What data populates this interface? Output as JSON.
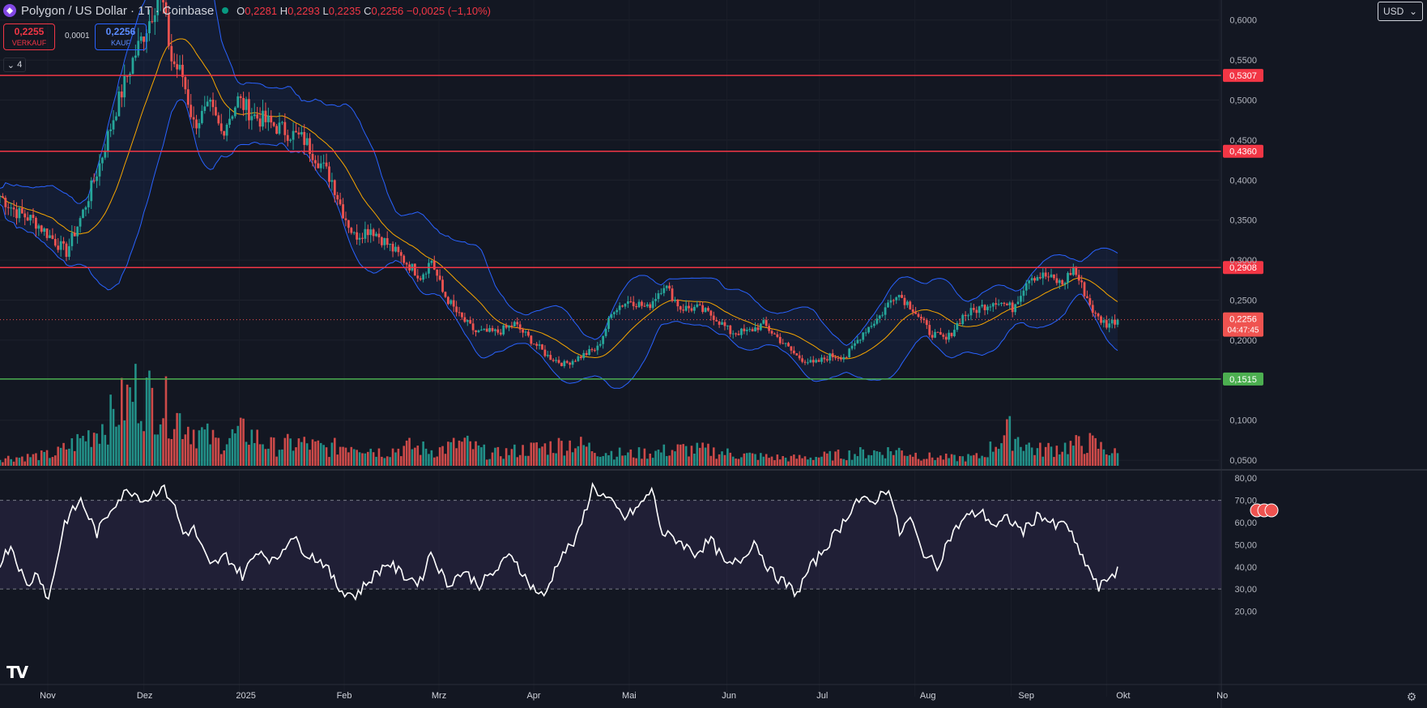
{
  "header": {
    "title": "Polygon / US Dollar · 1T · Coinbase",
    "open_label": "O",
    "open": "0,2281",
    "high_label": "H",
    "high": "0,2293",
    "low_label": "L",
    "low": "0,2235",
    "close_label": "C",
    "close": "0,2256",
    "change": "−0,0025 (−1,10%)"
  },
  "trade": {
    "sell_price": "0,2255",
    "sell_label": "VERKAUF",
    "spread": "0,0001",
    "buy_price": "0,2256",
    "buy_label": "KAUF"
  },
  "indicators_toggle": "4",
  "currency": "USD",
  "icons": [
    "polygon-logo-icon",
    "chevron-down-icon",
    "gear-icon",
    "tradingview-logo-icon",
    "earnings-flag-icon"
  ],
  "colors": {
    "background": "#131722",
    "up": "#26a69a",
    "down": "#ef5350",
    "bollinger_band": "#2962ff",
    "sma": "#f7a600",
    "resistance_line": "#f23645",
    "support_line": "#4caf50",
    "rsi_line": "#ffffff",
    "rsi_zone": "#7e57c2"
  },
  "price_axis": {
    "ticks": [
      "0,6000",
      "0,5500",
      "0,5000",
      "0,4500",
      "0,4000",
      "0,3500",
      "0,3000",
      "0,2500",
      "0,2000",
      "0,1000",
      "0,0500"
    ]
  },
  "levels": [
    {
      "value": 0.5307,
      "label": "0,5307",
      "kind": "resistance"
    },
    {
      "value": 0.436,
      "label": "0,4360",
      "kind": "resistance"
    },
    {
      "value": 0.2908,
      "label": "0,2908",
      "kind": "resistance"
    },
    {
      "value": 0.1515,
      "label": "0,1515",
      "kind": "support"
    }
  ],
  "current_price": {
    "label": "0,2256",
    "countdown": "04:47:45"
  },
  "time_axis": {
    "labels": [
      "Nov",
      "Dez",
      "2025",
      "Feb",
      "Mrz",
      "Apr",
      "Mai",
      "Jun",
      "Jul",
      "Aug",
      "Sep",
      "Okt",
      "No"
    ]
  },
  "rsi_axis": {
    "ticks": [
      "80,00",
      "70,00",
      "60,00",
      "50,00",
      "40,00",
      "30,00",
      "20,00"
    ]
  },
  "chart_data": {
    "type": "candlestick",
    "title": "Polygon / US Dollar · 1T · Coinbase",
    "x": [
      "Nov",
      "Dez",
      "2025",
      "Feb",
      "Mrz",
      "Apr",
      "Mai",
      "Jun",
      "Jul",
      "Aug",
      "Sep",
      "Okt"
    ],
    "close_path": [
      [
        0,
        0.38
      ],
      [
        6,
        0.36
      ],
      [
        12,
        0.35
      ],
      [
        18,
        0.33
      ],
      [
        24,
        0.31
      ],
      [
        30,
        0.36
      ],
      [
        36,
        0.42
      ],
      [
        42,
        0.49
      ],
      [
        48,
        0.55
      ],
      [
        54,
        0.6
      ],
      [
        58,
        0.64
      ],
      [
        62,
        0.55
      ],
      [
        66,
        0.53
      ],
      [
        70,
        0.47
      ],
      [
        76,
        0.49
      ],
      [
        80,
        0.46
      ],
      [
        86,
        0.5
      ],
      [
        92,
        0.48
      ],
      [
        98,
        0.47
      ],
      [
        104,
        0.46
      ],
      [
        110,
        0.45
      ],
      [
        116,
        0.42
      ],
      [
        120,
        0.4
      ],
      [
        124,
        0.36
      ],
      [
        128,
        0.33
      ],
      [
        134,
        0.34
      ],
      [
        140,
        0.32
      ],
      [
        146,
        0.3
      ],
      [
        152,
        0.28
      ],
      [
        156,
        0.3
      ],
      [
        160,
        0.26
      ],
      [
        166,
        0.23
      ],
      [
        172,
        0.21
      ],
      [
        180,
        0.21
      ],
      [
        186,
        0.22
      ],
      [
        192,
        0.2
      ],
      [
        198,
        0.18
      ],
      [
        204,
        0.17
      ],
      [
        210,
        0.18
      ],
      [
        216,
        0.19
      ],
      [
        222,
        0.24
      ],
      [
        228,
        0.25
      ],
      [
        234,
        0.24
      ],
      [
        240,
        0.27
      ],
      [
        246,
        0.24
      ],
      [
        252,
        0.24
      ],
      [
        258,
        0.23
      ],
      [
        264,
        0.21
      ],
      [
        270,
        0.21
      ],
      [
        276,
        0.22
      ],
      [
        282,
        0.2
      ],
      [
        288,
        0.18
      ],
      [
        294,
        0.17
      ],
      [
        300,
        0.18
      ],
      [
        306,
        0.18
      ],
      [
        312,
        0.21
      ],
      [
        318,
        0.23
      ],
      [
        324,
        0.26
      ],
      [
        330,
        0.24
      ],
      [
        336,
        0.21
      ],
      [
        342,
        0.2
      ],
      [
        348,
        0.23
      ],
      [
        354,
        0.24
      ],
      [
        360,
        0.25
      ],
      [
        366,
        0.24
      ],
      [
        372,
        0.28
      ],
      [
        378,
        0.28
      ],
      [
        384,
        0.27
      ],
      [
        388,
        0.29
      ],
      [
        392,
        0.26
      ],
      [
        396,
        0.23
      ],
      [
        400,
        0.22
      ],
      [
        404,
        0.2256
      ]
    ],
    "volume_profile": [
      0.1,
      0.12,
      0.15,
      0.35,
      0.6,
      1.0,
      0.8,
      0.5,
      0.3,
      0.45,
      0.25,
      0.3,
      0.22,
      0.3,
      0.18,
      0.25,
      0.2,
      0.3,
      0.15,
      0.2,
      0.25,
      0.3,
      0.2,
      0.15,
      0.18,
      0.22,
      0.2,
      0.15,
      0.12,
      0.1,
      0.12,
      0.15,
      0.18,
      0.2,
      0.12,
      0.1,
      0.12,
      0.45,
      0.2,
      0.25,
      0.3,
      0.15
    ],
    "rsi_path": [
      [
        0,
        42
      ],
      [
        4,
        50
      ],
      [
        10,
        31
      ],
      [
        14,
        38
      ],
      [
        18,
        25
      ],
      [
        24,
        60
      ],
      [
        30,
        70
      ],
      [
        36,
        55
      ],
      [
        42,
        68
      ],
      [
        48,
        75
      ],
      [
        54,
        70
      ],
      [
        60,
        76
      ],
      [
        64,
        70
      ],
      [
        68,
        55
      ],
      [
        72,
        57
      ],
      [
        78,
        40
      ],
      [
        84,
        45
      ],
      [
        90,
        36
      ],
      [
        96,
        48
      ],
      [
        102,
        42
      ],
      [
        108,
        54
      ],
      [
        114,
        46
      ],
      [
        120,
        42
      ],
      [
        126,
        30
      ],
      [
        132,
        27
      ],
      [
        138,
        35
      ],
      [
        144,
        42
      ],
      [
        150,
        36
      ],
      [
        156,
        33
      ],
      [
        160,
        47
      ],
      [
        166,
        32
      ],
      [
        172,
        38
      ],
      [
        178,
        32
      ],
      [
        184,
        38
      ],
      [
        190,
        46
      ],
      [
        196,
        33
      ],
      [
        202,
        26
      ],
      [
        208,
        45
      ],
      [
        214,
        52
      ],
      [
        220,
        76
      ],
      [
        226,
        70
      ],
      [
        232,
        62
      ],
      [
        238,
        68
      ],
      [
        242,
        75
      ],
      [
        246,
        55
      ],
      [
        252,
        52
      ],
      [
        258,
        46
      ],
      [
        264,
        52
      ],
      [
        270,
        40
      ],
      [
        276,
        44
      ],
      [
        280,
        52
      ],
      [
        286,
        38
      ],
      [
        292,
        32
      ],
      [
        296,
        28
      ],
      [
        300,
        38
      ],
      [
        306,
        48
      ],
      [
        312,
        58
      ],
      [
        318,
        70
      ],
      [
        324,
        69
      ],
      [
        330,
        76
      ],
      [
        334,
        55
      ],
      [
        338,
        62
      ],
      [
        342,
        48
      ],
      [
        348,
        40
      ],
      [
        352,
        52
      ],
      [
        358,
        62
      ],
      [
        364,
        65
      ],
      [
        370,
        58
      ],
      [
        374,
        62
      ],
      [
        380,
        56
      ],
      [
        386,
        64
      ],
      [
        392,
        58
      ],
      [
        396,
        60
      ],
      [
        400,
        48
      ],
      [
        404,
        40
      ],
      [
        408,
        30
      ],
      [
        412,
        36
      ],
      [
        415,
        38
      ]
    ],
    "rsi_bands": [
      30,
      70
    ],
    "price_range": [
      0.04,
      0.625
    ],
    "rsi_range": [
      18,
      83
    ]
  }
}
